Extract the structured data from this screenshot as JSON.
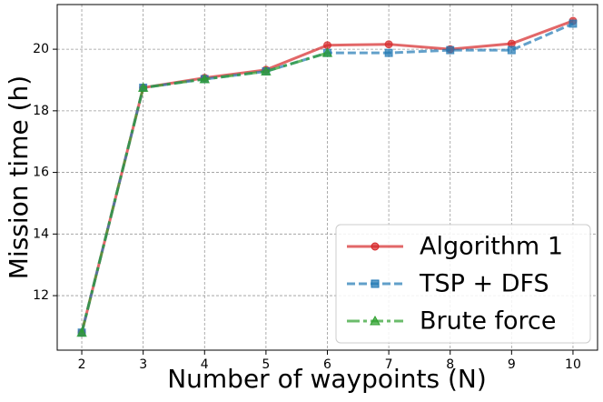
{
  "chart_data": {
    "type": "line",
    "x_label": "Number of waypoints (N)",
    "y_label": "Mission time (h)",
    "x": [
      2,
      3,
      4,
      5,
      6,
      7,
      8,
      9,
      10
    ],
    "series": [
      {
        "name": "Algorithm 1",
        "color": "#d62728",
        "marker": "circle",
        "linestyle": "solid",
        "values": [
          10.8,
          18.75,
          19.07,
          19.33,
          20.13,
          20.16,
          20.0,
          20.18,
          20.92
        ]
      },
      {
        "name": "TSP + DFS",
        "color": "#1f77b4",
        "marker": "square",
        "linestyle": "dashed",
        "values": [
          10.8,
          18.75,
          19.03,
          19.28,
          19.88,
          19.88,
          19.97,
          19.97,
          20.83
        ]
      },
      {
        "name": "Brute force",
        "color": "#2ca02c",
        "marker": "triangle",
        "linestyle": "dashdot",
        "values": [
          10.8,
          18.75,
          19.03,
          19.28,
          19.88,
          null,
          null,
          null,
          null
        ]
      }
    ],
    "xlim": [
      1.6,
      10.4
    ],
    "ylim": [
      10.23,
      21.45
    ],
    "xticks": [
      2,
      3,
      4,
      5,
      6,
      7,
      8,
      9,
      10
    ],
    "yticks": [
      12,
      14,
      16,
      18,
      20
    ],
    "grid": true,
    "legend": "lower right"
  }
}
